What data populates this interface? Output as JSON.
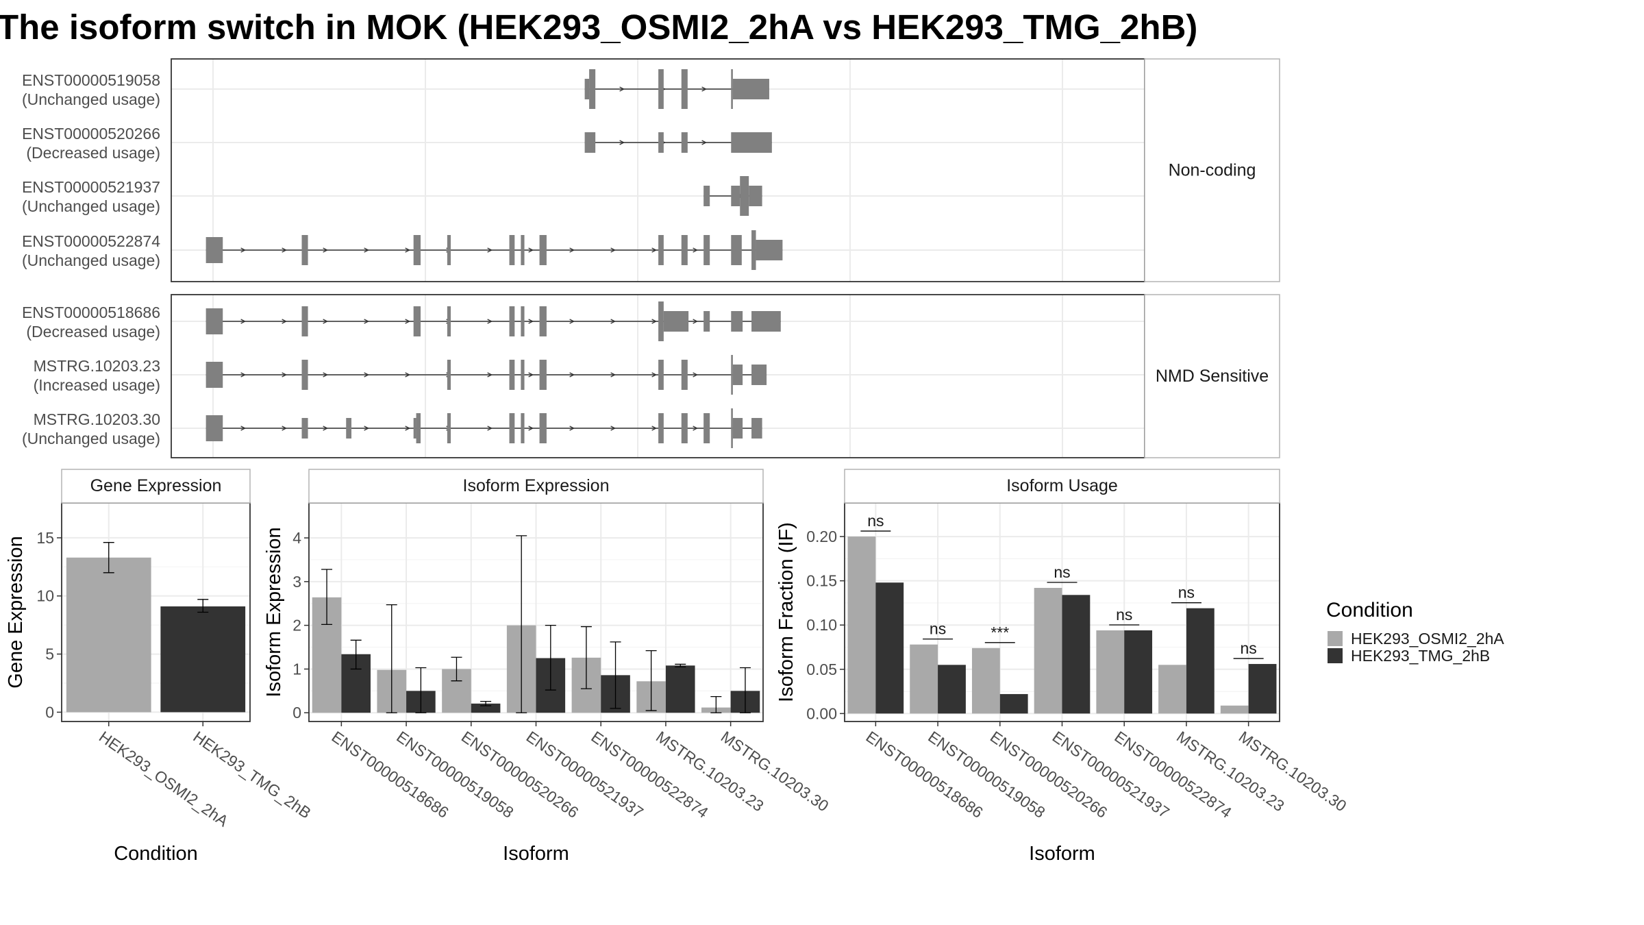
{
  "title": "The isoform switch in MOK (HEK293_OSMI2_2hA vs HEK293_TMG_2hB)",
  "colors": {
    "structure": "#808080",
    "condition_a": "#a9a9a9",
    "condition_b": "#333333",
    "grid": "#ebebeb",
    "panel_border": "#333333",
    "strip_border": "#b3b3b3"
  },
  "structure": {
    "groups": [
      {
        "label": "Non-coding",
        "isoforms": [
          {
            "id": "ENST00000519058",
            "usage": "(Unchanged usage)"
          },
          {
            "id": "ENST00000520266",
            "usage": "(Decreased usage)"
          },
          {
            "id": "ENST00000521937",
            "usage": "(Unchanged usage)"
          },
          {
            "id": "ENST00000522874",
            "usage": "(Unchanged usage)"
          }
        ]
      },
      {
        "label": "NMD Sensitive",
        "isoforms": [
          {
            "id": "ENST00000518686",
            "usage": "(Decreased usage)"
          },
          {
            "id": "MSTRG.10203.23",
            "usage": "(Increased usage)"
          },
          {
            "id": "MSTRG.10203.30",
            "usage": "(Unchanged usage)"
          }
        ]
      }
    ]
  },
  "legend": {
    "title": "Condition",
    "items": [
      "HEK293_OSMI2_2hA",
      "HEK293_TMG_2hB"
    ]
  },
  "chart_data": [
    {
      "type": "bar",
      "title": "Gene Expression",
      "xlabel": "Condition",
      "ylabel": "Gene Expression",
      "categories": [
        "HEK293_OSMI2_2hA",
        "HEK293_TMG_2hB"
      ],
      "values": [
        13.3,
        9.1
      ],
      "error_bars": [
        [
          12.0,
          14.6
        ],
        [
          8.6,
          9.7
        ]
      ],
      "ylim": [
        -0.8,
        18.0
      ],
      "yticks": [
        0,
        5,
        10,
        15
      ]
    },
    {
      "type": "bar",
      "title": "Isoform Expression",
      "xlabel": "Isoform",
      "ylabel": "Isoform Expression",
      "categories": [
        "ENST00000518686",
        "ENST00000519058",
        "ENST00000520266",
        "ENST00000521937",
        "ENST00000522874",
        "MSTRG.10203.23",
        "MSTRG.10203.30"
      ],
      "series": [
        {
          "name": "HEK293_OSMI2_2hA",
          "values": [
            2.64,
            0.98,
            1.0,
            2.0,
            1.26,
            0.72,
            0.12
          ],
          "errors": [
            [
              2.02,
              3.28
            ],
            [
              0.0,
              2.47
            ],
            [
              0.73,
              1.27
            ],
            [
              0.0,
              4.05
            ],
            [
              0.55,
              1.97
            ],
            [
              0.05,
              1.42
            ],
            [
              0.0,
              0.37
            ]
          ]
        },
        {
          "name": "HEK293_TMG_2hB",
          "values": [
            1.34,
            0.5,
            0.21,
            1.25,
            0.86,
            1.08,
            0.5
          ],
          "errors": [
            [
              1.0,
              1.66
            ],
            [
              0.0,
              1.03
            ],
            [
              0.16,
              0.26
            ],
            [
              0.52,
              2.0
            ],
            [
              0.1,
              1.62
            ],
            [
              1.05,
              1.11
            ],
            [
              0.0,
              1.03
            ]
          ]
        }
      ],
      "ylim": [
        -0.2,
        4.8
      ],
      "yticks": [
        0,
        1,
        2,
        3,
        4
      ]
    },
    {
      "type": "bar",
      "title": "Isoform Usage",
      "xlabel": "Isoform",
      "ylabel": "Isoform Fraction (IF)",
      "categories": [
        "ENST00000518686",
        "ENST00000519058",
        "ENST00000520266",
        "ENST00000521937",
        "ENST00000522874",
        "MSTRG.10203.23",
        "MSTRG.10203.30"
      ],
      "series": [
        {
          "name": "HEK293_OSMI2_2hA",
          "values": [
            0.2,
            0.078,
            0.074,
            0.142,
            0.094,
            0.055,
            0.009
          ]
        },
        {
          "name": "HEK293_TMG_2hB",
          "values": [
            0.148,
            0.055,
            0.022,
            0.134,
            0.094,
            0.119,
            0.056
          ]
        }
      ],
      "significance": [
        "ns",
        "ns",
        "***",
        "ns",
        "ns",
        "ns",
        "ns"
      ],
      "ylim": [
        -0.009,
        0.238
      ],
      "yticks": [
        0.0,
        0.05,
        0.1,
        0.15,
        0.2
      ],
      "ytick_labels": [
        "0.00",
        "0.05",
        "0.10",
        "0.15",
        "0.20"
      ]
    }
  ]
}
